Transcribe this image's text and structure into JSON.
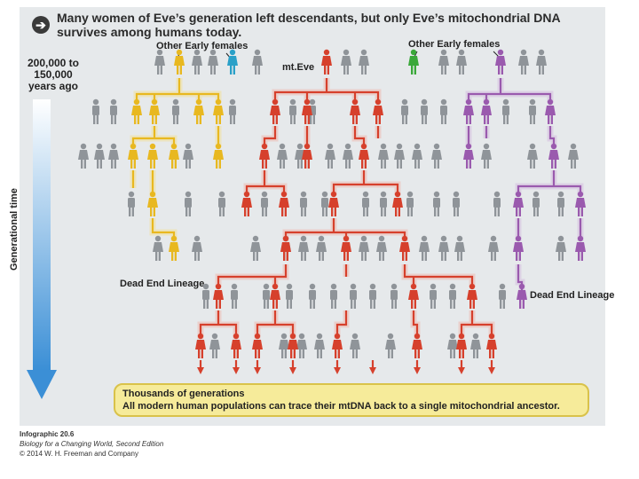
{
  "header": {
    "title": "Many women of Eve’s generation left descendants, but only Eve’s mitochondrial DNA survives among humans today."
  },
  "labels": {
    "other_early_left": "Other Early females",
    "other_early_right": "Other Early females",
    "mt_eve": "mt.Eve",
    "time_range": "200,000 to 150,000 years ago",
    "axis": "Generational time",
    "dead_end_left": "Dead End Lineage",
    "dead_end_right": "Dead End Lineage"
  },
  "banner": {
    "line1": "Thousands of generations",
    "line2": "All modern human populations can trace their mtDNA back to a single mitochondrial ancestor."
  },
  "credit": {
    "line1": "Infographic 20.6",
    "line2": "Biology for a Changing World, Second Edition",
    "line3": "© 2014 W. H. Freeman and Company"
  },
  "colors": {
    "yellow": "#e8b820",
    "red": "#d6402c",
    "purple": "#9a5aae",
    "teal": "#2aa0c8",
    "green": "#3aa83a",
    "gray": "#8f9499",
    "axis_blue": "#3b8fd6"
  }
}
